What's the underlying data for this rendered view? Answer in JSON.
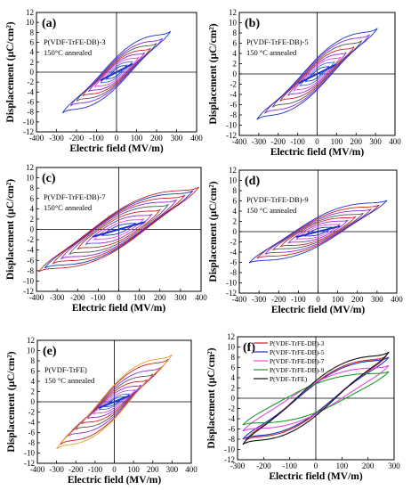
{
  "chart_data": [
    {
      "type": "line",
      "panel_label": "(a)",
      "annotation": [
        "P(VDF-TrFE-DB)-3",
        "150°C annealed"
      ],
      "xlabel": "Electric field (MV/m)",
      "ylabel": "Displacement (μC/cm²)",
      "xlim": [
        -400,
        400
      ],
      "ylim": [
        -12,
        12
      ],
      "xticks": [
        "-400",
        "-300",
        "-200",
        "-100",
        "0",
        "100",
        "200",
        "300",
        "400"
      ],
      "yticks": [
        "-12",
        "-10",
        "-8",
        "-6",
        "-4",
        "-2",
        "0",
        "2",
        "4",
        "6",
        "8",
        "10",
        "12"
      ],
      "loops_Emax": [
        50,
        80,
        110,
        140,
        170,
        200,
        230,
        270
      ],
      "loop_Pmax": [
        1.4,
        2.2,
        3.0,
        3.9,
        4.8,
        5.8,
        6.8,
        8.2
      ],
      "loop_Pr": [
        0.4,
        1.0,
        1.8,
        2.6,
        3.3,
        3.8,
        4.2,
        4.6
      ],
      "loop_Ec": [
        20,
        30,
        40,
        48,
        55,
        60,
        65,
        70
      ],
      "loop_colors": [
        "#1a33cc",
        "#3b6fe0",
        "#e64adf",
        "#8a2be2",
        "#cc2222",
        "#555555",
        "#8a2be2",
        "#1a33cc"
      ],
      "highlight_color": "#1a33cc"
    },
    {
      "type": "line",
      "panel_label": "(b)",
      "annotation": [
        "P(VDF-TrFE-DB)-5",
        "150 °C annealed"
      ],
      "xlabel": "Electric field (MV/m)",
      "ylabel": "Displacement (μC/cm²)",
      "xlim": [
        -400,
        400
      ],
      "ylim": [
        -12,
        12
      ],
      "xticks": [
        "-400",
        "-300",
        "-200",
        "-100",
        "0",
        "100",
        "200",
        "300",
        "400"
      ],
      "yticks": [
        "-12",
        "-10",
        "-8",
        "-6",
        "-4",
        "-2",
        "0",
        "2",
        "4",
        "6",
        "8",
        "10",
        "12"
      ],
      "loops_Emax": [
        60,
        90,
        120,
        150,
        190,
        230,
        270,
        310
      ],
      "loop_Pmax": [
        1.5,
        2.4,
        3.3,
        4.2,
        5.3,
        6.5,
        7.7,
        8.9
      ],
      "loop_Pr": [
        0.4,
        1.1,
        2.0,
        2.8,
        3.5,
        4.0,
        4.4,
        4.8
      ],
      "loop_Ec": [
        22,
        32,
        42,
        50,
        58,
        64,
        70,
        75
      ],
      "loop_colors": [
        "#1a33cc",
        "#3b6fe0",
        "#e64adf",
        "#8a2be2",
        "#cc2222",
        "#555555",
        "#8a2be2",
        "#1a33cc"
      ],
      "highlight_color": "#1a33cc"
    },
    {
      "type": "line",
      "panel_label": "(c)",
      "annotation": [
        "P(VDF-TrFE-DB)-7",
        "150°C annealed"
      ],
      "xlabel": "Electric field (MV/m)",
      "ylabel": "Displacement (μC/cm²)",
      "xlim": [
        -400,
        400
      ],
      "ylim": [
        -12,
        12
      ],
      "xticks": [
        "-400",
        "-300",
        "-200",
        "-100",
        "0",
        "100",
        "200",
        "300",
        "400"
      ],
      "yticks": [
        "-12",
        "-10",
        "-8",
        "-6",
        "-4",
        "-2",
        "0",
        "2",
        "4",
        "6",
        "8",
        "10",
        "12"
      ],
      "loops_Emax": [
        80,
        120,
        160,
        200,
        240,
        280,
        320,
        360,
        390
      ],
      "loop_Pmax": [
        1.2,
        2.0,
        2.9,
        3.8,
        4.8,
        5.7,
        6.6,
        7.5,
        8.2
      ],
      "loop_Pr": [
        0.2,
        0.5,
        0.9,
        1.3,
        1.7,
        2.1,
        2.4,
        2.7,
        3.0
      ],
      "loop_Ec": [
        40,
        60,
        80,
        95,
        105,
        115,
        120,
        125,
        130
      ],
      "loop_colors": [
        "#1a33cc",
        "#e64adf",
        "#8a2be2",
        "#cc2222",
        "#555555",
        "#8a2be2",
        "#cc2222",
        "#1a33cc",
        "#cc2222"
      ],
      "highlight_color": "#1a33cc"
    },
    {
      "type": "line",
      "panel_label": "(d)",
      "annotation": [
        "P(VDF-TrFE-DB)-9",
        "150 °C annealed"
      ],
      "xlabel": "Electric field (MV/m)",
      "ylabel": "Displacement (μC/cm²)",
      "xlim": [
        -400,
        400
      ],
      "ylim": [
        -12,
        12
      ],
      "xticks": [
        "-400",
        "-300",
        "-200",
        "-100",
        "0",
        "100",
        "200",
        "300",
        "400"
      ],
      "yticks": [
        "-12",
        "-10",
        "-8",
        "-6",
        "-4",
        "-2",
        "0",
        "2",
        "4",
        "6",
        "8",
        "10",
        "12"
      ],
      "loops_Emax": [
        70,
        110,
        150,
        190,
        230,
        270,
        310,
        350
      ],
      "loop_Pmax": [
        0.9,
        1.5,
        2.2,
        2.9,
        3.6,
        4.4,
        5.2,
        6.1
      ],
      "loop_Pr": [
        0.1,
        0.3,
        0.5,
        0.8,
        1.0,
        1.3,
        1.5,
        1.7
      ],
      "loop_Ec": [
        40,
        60,
        75,
        90,
        100,
        108,
        115,
        120
      ],
      "loop_colors": [
        "#1a33cc",
        "#e64adf",
        "#8a2be2",
        "#cc2222",
        "#555555",
        "#8a2be2",
        "#cc2222",
        "#1a33cc"
      ],
      "highlight_color": "#1a33cc"
    },
    {
      "type": "line",
      "panel_label": "(e)",
      "annotation": [
        "P(VDF-TrFE)",
        "150 °C annealed"
      ],
      "xlabel": "Electric field (MV/m)",
      "ylabel": "Displacement (μC/cm²)",
      "xlim": [
        -400,
        400
      ],
      "ylim": [
        -12,
        12
      ],
      "xticks": [
        "-400",
        "-300",
        "-200",
        "-100",
        "0",
        "100",
        "200",
        "300",
        "400"
      ],
      "yticks": [
        "-12",
        "-10",
        "-8",
        "-6",
        "-4",
        "-2",
        "0",
        "2",
        "4",
        "6",
        "8",
        "10",
        "12"
      ],
      "loops_Emax": [
        50,
        80,
        110,
        140,
        170,
        200,
        240,
        280,
        300
      ],
      "loop_Pmax": [
        1.0,
        1.6,
        2.4,
        3.3,
        4.3,
        5.4,
        6.7,
        8.3,
        9.2
      ],
      "loop_Pr": [
        0.3,
        0.8,
        1.6,
        2.5,
        3.5,
        4.5,
        5.5,
        6.3,
        6.8
      ],
      "loop_Ec": [
        20,
        30,
        40,
        50,
        58,
        64,
        70,
        74,
        76
      ],
      "loop_colors": [
        "#1a33cc",
        "#3b6fe0",
        "#e64adf",
        "#8a2be2",
        "#cc2222",
        "#555555",
        "#8a2be2",
        "#cc2222",
        "#e6a12a"
      ],
      "highlight_color": "#1a33cc"
    },
    {
      "type": "line",
      "panel_label": "(f)",
      "xlabel": "Electric field (MV/m)",
      "ylabel": "Displacement (μC/cm²)",
      "xlim": [
        -300,
        300
      ],
      "ylim": [
        -12,
        12
      ],
      "xticks": [
        "-300",
        "-200",
        "-100",
        "0",
        "100",
        "200",
        "300"
      ],
      "yticks": [
        "-12",
        "-10",
        "-8",
        "-6",
        "-4",
        "-2",
        "0",
        "2",
        "4",
        "6",
        "8",
        "10",
        "12"
      ],
      "legend_position": "top-left",
      "series": [
        {
          "name": "P(VDF-TrFE-DB)-3",
          "color": "#cc2222",
          "Emax": 270,
          "Pmax": 8.2,
          "Pr": 4.6,
          "Ec": 70
        },
        {
          "name": "P(VDF-TrFE-DB)-5",
          "color": "#1a33cc",
          "Emax": 280,
          "Pmax": 8.0,
          "Pr": 4.5,
          "Ec": 70
        },
        {
          "name": "P(VDF-TrFE-DB)-7",
          "color": "#e64adf",
          "Emax": 280,
          "Pmax": 6.4,
          "Pr": 1.6,
          "Ec": 100
        },
        {
          "name": "P(VDF-TrFE-DB)-9",
          "color": "#1f9a2a",
          "Emax": 280,
          "Pmax": 5.2,
          "Pr": 1.3,
          "Ec": 115
        },
        {
          "name": "P(VDF-TrFE)",
          "color": "#111111",
          "Emax": 280,
          "Pmax": 9.0,
          "Pr": 6.8,
          "Ec": 75
        }
      ]
    }
  ]
}
